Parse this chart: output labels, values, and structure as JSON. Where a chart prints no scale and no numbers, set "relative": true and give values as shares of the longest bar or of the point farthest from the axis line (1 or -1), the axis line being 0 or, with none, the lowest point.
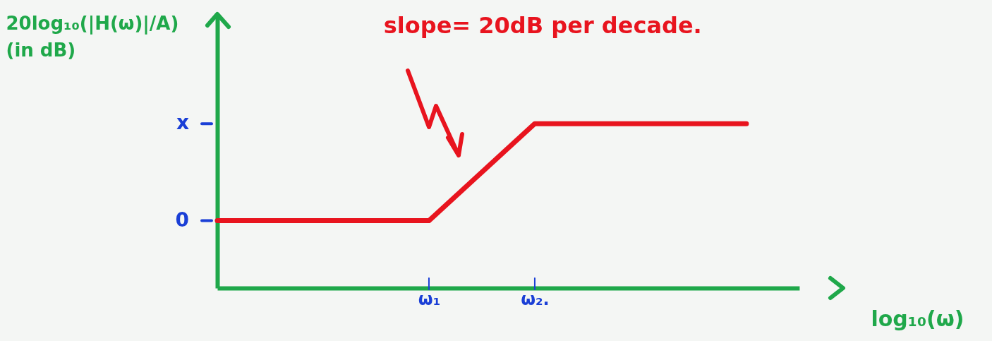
{
  "chart_data": {
    "type": "line",
    "relative": true,
    "ylabel": "20log₁₀(|H(ω)|/A)\n(in dB)",
    "xlabel": "log₁₀(ω)",
    "categories": [
      null,
      null,
      null,
      null,
      "ω₁",
      null,
      "ω₂.",
      null,
      null,
      null,
      null,
      null
    ],
    "series": [
      {
        "color": "#e8141e",
        "values": [
          0.41,
          0.41,
          0.41,
          0.41,
          0.41,
          0.705,
          1,
          1,
          1,
          1,
          1,
          null
        ]
      }
    ],
    "grid": false,
    "marker": "none",
    "line_style": "solid",
    "annotations": [
      "slope= 20dB per decade.",
      "0",
      "x"
    ]
  }
}
